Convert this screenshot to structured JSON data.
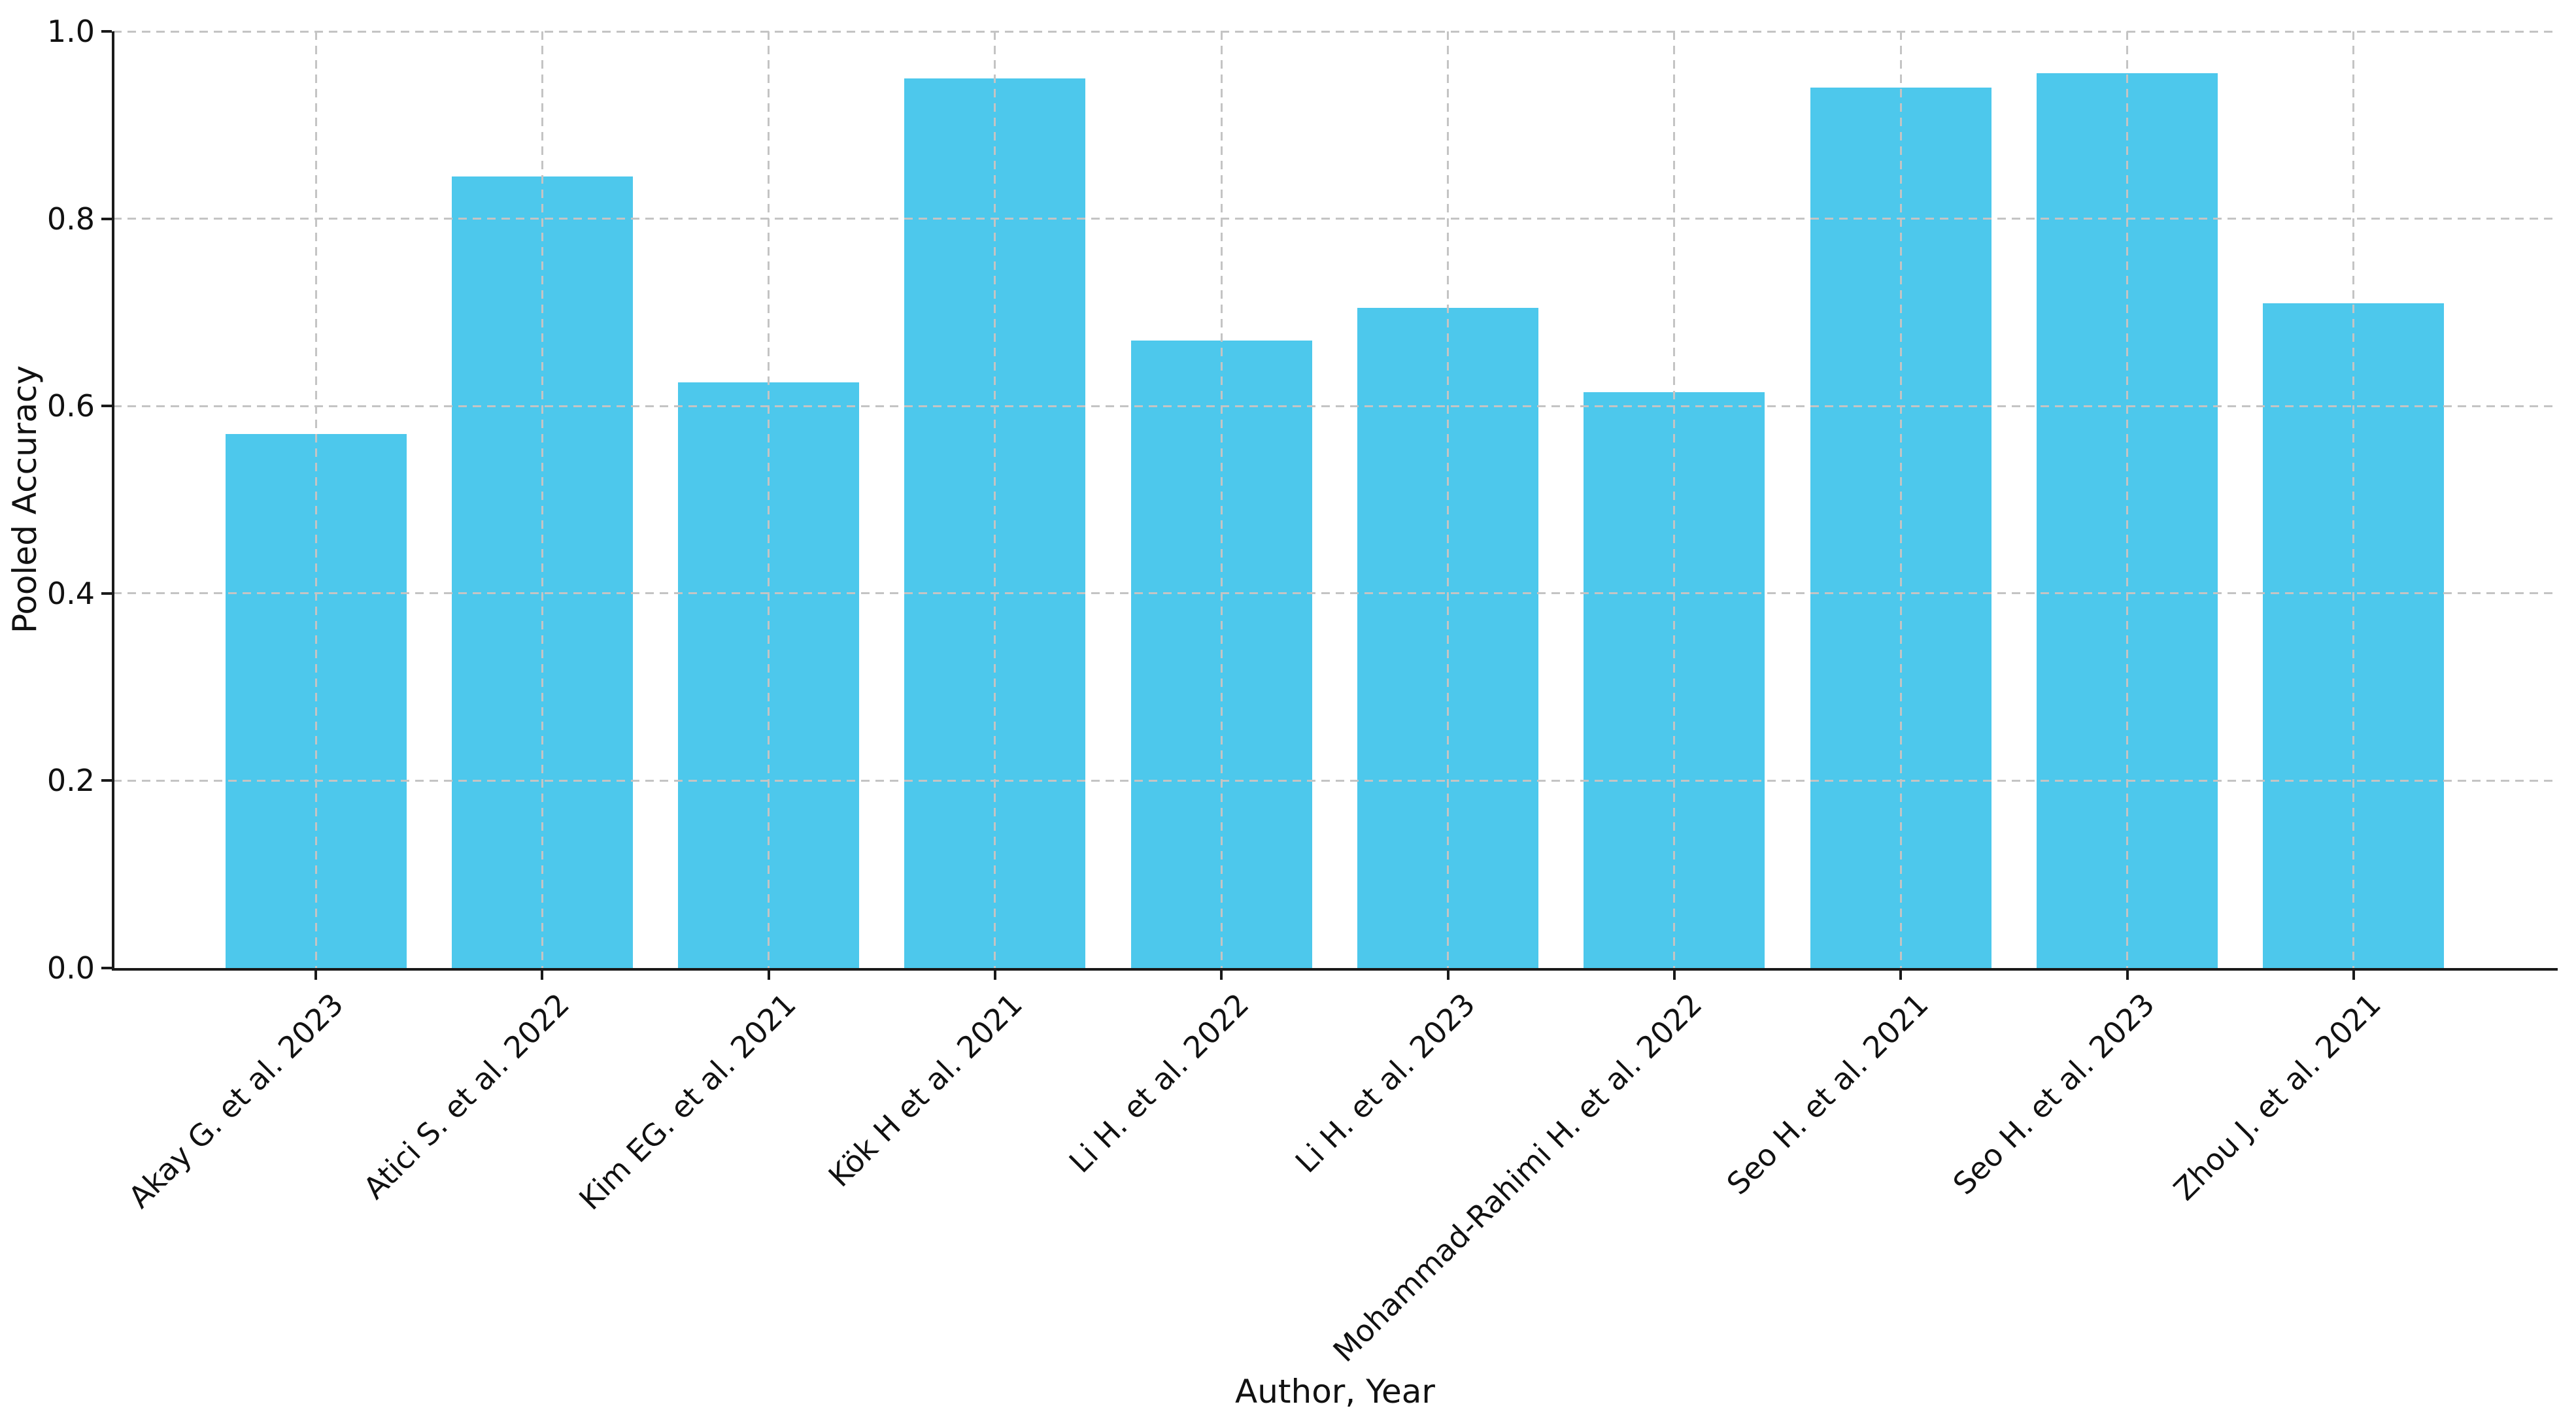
{
  "chart_data": {
    "type": "bar",
    "title": "",
    "xlabel": "Author, Year",
    "ylabel": "Pooled Accuracy",
    "categories": [
      "Akay G. et al. 2023",
      "Atici S. et al. 2022",
      "Kim EG. et al. 2021",
      "Kök H et al. 2021",
      "Li H. et al. 2022",
      "Li H. et al. 2023",
      "Mohammad-Rahimi H. et al. 2022",
      "Seo H. et al. 2021",
      "Seo H. et al. 2023",
      "Zhou J. et al. 2021"
    ],
    "values": [
      0.57,
      0.845,
      0.625,
      0.95,
      0.67,
      0.705,
      0.615,
      0.94,
      0.955,
      0.71
    ],
    "ylim": [
      0.0,
      1.0
    ],
    "yticks": [
      0.0,
      0.2,
      0.4,
      0.6,
      0.8,
      1.0
    ],
    "ytick_labels": [
      "0.0",
      "0.2",
      "0.4",
      "0.6",
      "0.8",
      "1.0"
    ],
    "bar_color": "#4dc8ec",
    "grid": {
      "visible": true,
      "style": "dashed",
      "color": "#c4c4c4",
      "drawn_above_bars": true
    },
    "x_tick_rotation_deg": 45,
    "legend_position": "none"
  }
}
